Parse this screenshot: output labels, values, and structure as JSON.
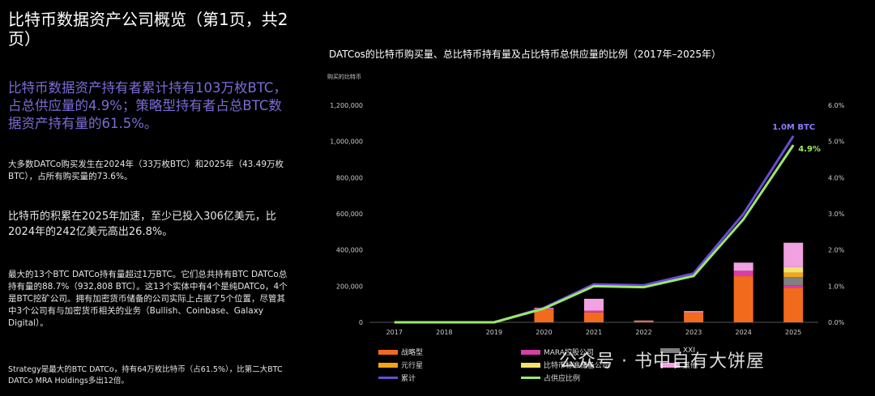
{
  "left": {
    "title": "比特币数据资产公司概览（第1页，共2页）",
    "headline": "比特币数据资产持有者累计持有103万枚BTC，占总供应量的4.9%；策略型持有者占总BTC数据资产持有量的61.5%。",
    "p1": "大多数DATCo购买发生在2024年（33万枚BTC）和2025年（43.49万枚BTC），占所有购买量的73.6%。",
    "p2": "比特币的积累在2025年加速，至少已投入306亿美元，比2024年的242亿美元高出26.8%。",
    "p3": "最大的13个BTC DATCo持有量超过1万BTC。它们总共持有BTC DATCo总持有量的88.7%（932,808 BTC）。这13个实体中有4个是纯DATCo，4个是BTC挖矿公司。拥有加密货币储备的公司实际上占据了5个位置，尽管其中3个公司有与加密货币相关的业务（Bullish、Coinbase、Galaxy Digital）。",
    "p4": "Strategy是最大的BTC DATCo，持有64万枚比特币（占61.5%），比第二大BTC DATCo MRA Holdings多出12倍。"
  },
  "watermark": "公众号 · 书中自有大饼屋",
  "chart_data": {
    "type": "bar",
    "title": "DATCos的比特币购买量、总比特币持有量及占比特币总供应量的比例（2017年–2025年）",
    "ylabel": "购买的比特币",
    "ylim": [
      0,
      1200000
    ],
    "y2lim": [
      0,
      6
    ],
    "yticks": [
      "0",
      "200,000",
      "400,000",
      "600,000",
      "800,000",
      "1,000,000",
      "1,200,000"
    ],
    "y2ticks": [
      "0.0%",
      "1.0%",
      "2.0%",
      "3.0%",
      "4.0%",
      "5.0%",
      "6.0%"
    ],
    "categories": [
      "2017",
      "2018",
      "2019",
      "2020",
      "2021",
      "2022",
      "2023",
      "2024",
      "2025"
    ],
    "series": [
      {
        "name": "战略型",
        "color": "#f26a1b",
        "values": [
          0,
          0,
          0,
          72000,
          55000,
          8000,
          55000,
          255000,
          190000
        ]
      },
      {
        "name": "MARA控股公司",
        "color": "#d63fa5",
        "values": [
          0,
          0,
          0,
          3000,
          10000,
          0,
          0,
          30000,
          15000
        ]
      },
      {
        "name": "XXI",
        "color": "#808080",
        "values": [
          0,
          0,
          0,
          0,
          0,
          0,
          0,
          0,
          45000
        ]
      },
      {
        "name": "元行星",
        "color": "#f2a51b",
        "values": [
          0,
          0,
          0,
          0,
          0,
          0,
          0,
          0,
          25000
        ]
      },
      {
        "name": "比特币标准储备公司",
        "color": "#f2e26a",
        "values": [
          0,
          0,
          0,
          0,
          0,
          0,
          0,
          0,
          30000
        ]
      },
      {
        "name": "其他",
        "color": "#f2a2e0",
        "values": [
          0,
          0,
          0,
          5000,
          65000,
          2000,
          7000,
          45000,
          135000
        ]
      }
    ],
    "lines": [
      {
        "name": "累计",
        "color": "#6a4bd6",
        "axis": "left",
        "values": [
          0,
          0,
          0,
          80000,
          210000,
          205000,
          270000,
          600000,
          1030000
        ]
      },
      {
        "name": "占供应比例",
        "color": "#9be86a",
        "axis": "right",
        "values": [
          0,
          0,
          0,
          0.38,
          1.0,
          0.97,
          1.28,
          2.85,
          4.9
        ]
      }
    ],
    "annotations": [
      {
        "text": "1.0M BTC",
        "color": "#8a7bff",
        "series": "累计",
        "at": "2025"
      },
      {
        "text": "4.9%",
        "color": "#9be86a",
        "series": "占供应比例",
        "at": "2025"
      }
    ]
  }
}
